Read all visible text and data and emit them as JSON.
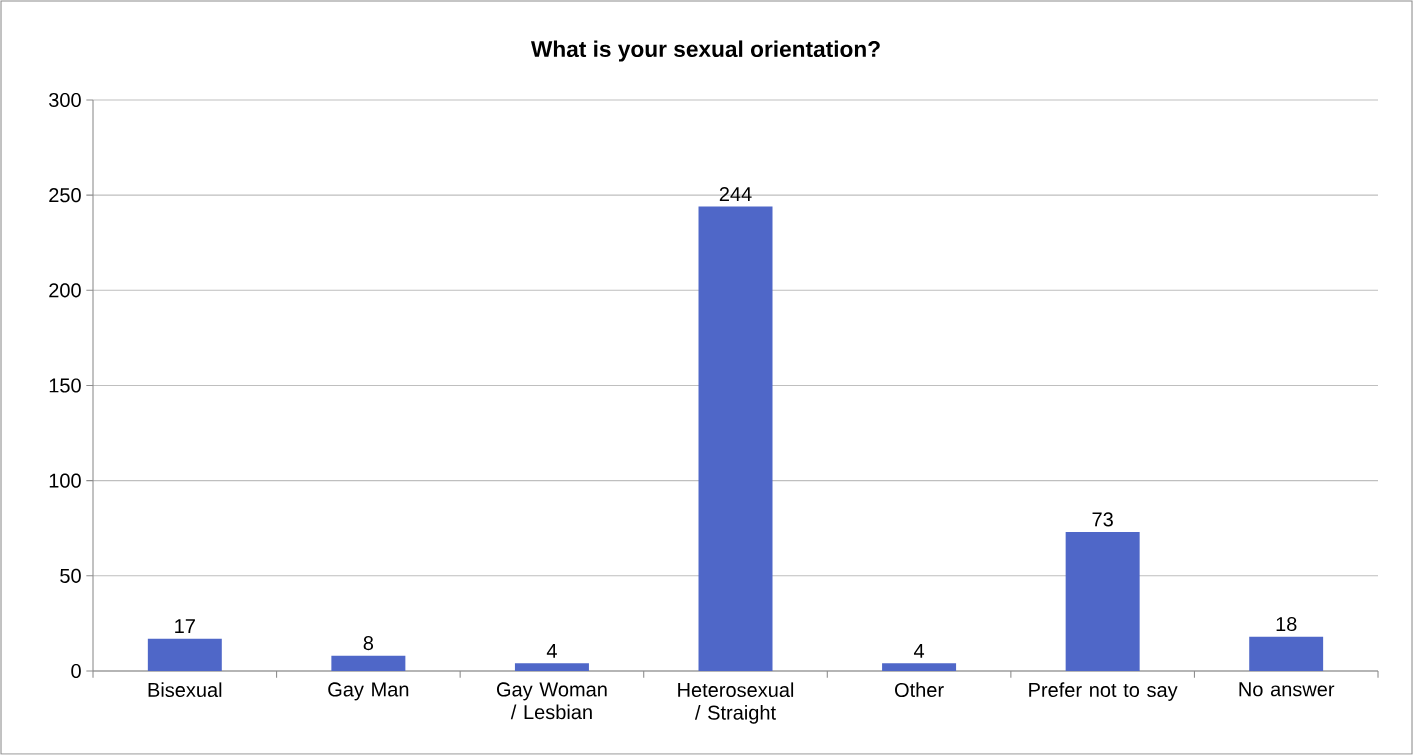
{
  "chart_data": {
    "type": "bar",
    "title": "What is your sexual orientation?",
    "categories": [
      "Bisexual",
      "Gay Man",
      "Gay Woman / Lesbian",
      "Heterosexual / Straight",
      "Other",
      "Prefer not to say",
      "No answer"
    ],
    "values": [
      17,
      8,
      4,
      244,
      4,
      73,
      18
    ],
    "color": "#4f67c8",
    "ylim": [
      0,
      300
    ],
    "yticks": [
      0,
      50,
      100,
      150,
      200,
      250,
      300
    ],
    "grid": "y",
    "data_labels": true
  }
}
